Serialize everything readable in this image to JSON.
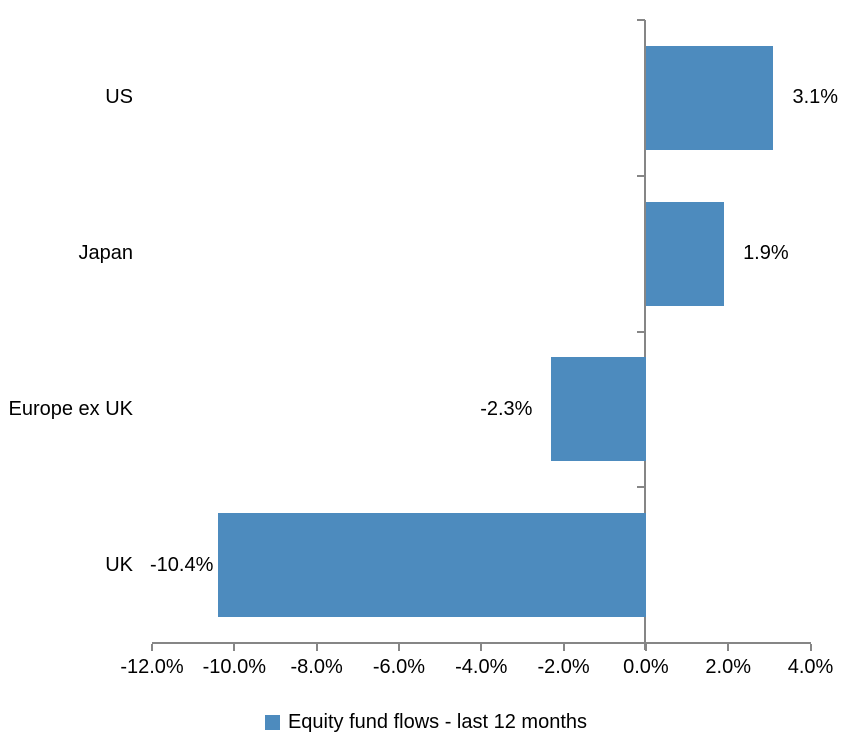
{
  "chart_data": {
    "type": "bar",
    "orientation": "horizontal",
    "categories": [
      "US",
      "Japan",
      "Europe ex UK",
      "UK"
    ],
    "series": [
      {
        "name": "Equity fund flows - last 12 months",
        "values": [
          3.1,
          1.9,
          -2.3,
          -10.4
        ]
      }
    ],
    "value_labels": [
      "3.1%",
      "1.9%",
      "-2.3%",
      "-10.4%"
    ],
    "x_axis": {
      "min": -12,
      "max": 4,
      "tick_step": 2,
      "ticks": [
        -12,
        -10,
        -8,
        -6,
        -4,
        -2,
        0,
        2,
        4
      ],
      "tick_labels": [
        "-12.0%",
        "-10.0%",
        "-8.0%",
        "-6.0%",
        "-4.0%",
        "-2.0%",
        "0.0%",
        "2.0%",
        "4.0%"
      ]
    },
    "title": "",
    "xlabel": "",
    "ylabel": "",
    "grid": false,
    "legend": {
      "position": "bottom",
      "label": "Equity fund flows - last 12 months"
    },
    "colors": {
      "bar": "#4D8BBE",
      "axis": "#868686",
      "text": "#000000",
      "background": "#ffffff"
    }
  }
}
